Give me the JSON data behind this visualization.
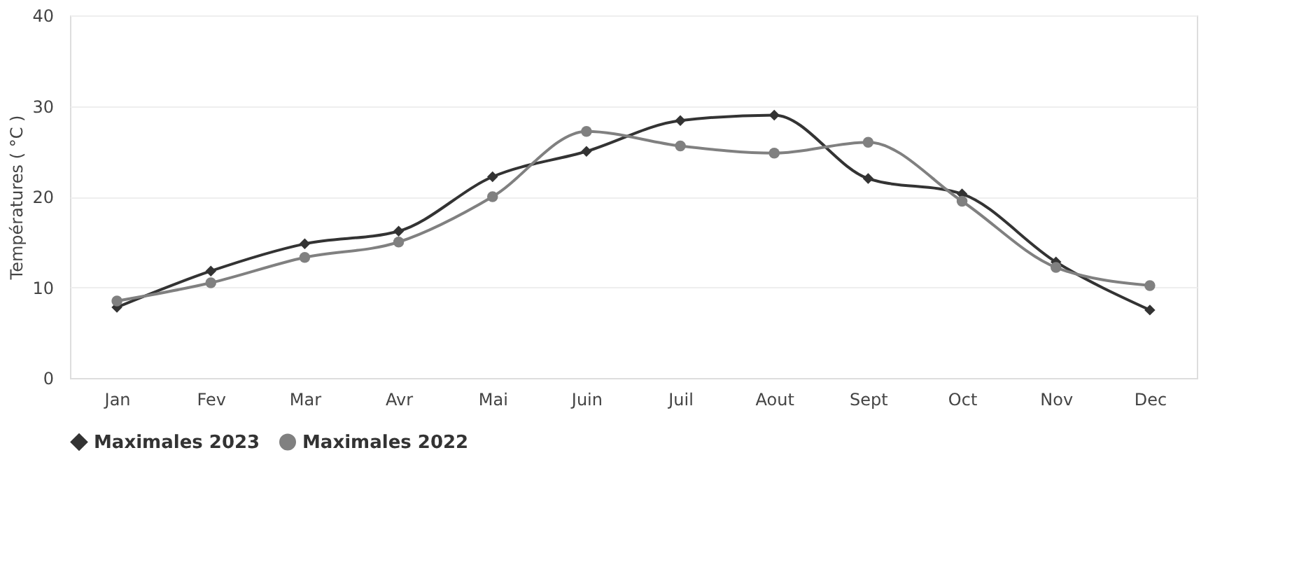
{
  "chart_data": {
    "type": "line",
    "ylabel": "Températures ( °C )",
    "categories": [
      "Jan",
      "Fev",
      "Mar",
      "Avr",
      "Mai",
      "Juin",
      "Juil",
      "Aout",
      "Sept",
      "Oct",
      "Nov",
      "Dec"
    ],
    "series": [
      {
        "name": "Maximales 2023",
        "color": "#333333",
        "marker": "diamond",
        "values": [
          7.8,
          11.8,
          14.8,
          16.2,
          22.2,
          25,
          28.4,
          29,
          22,
          20.3,
          12.8,
          7.5
        ]
      },
      {
        "name": "Maximales 2022",
        "color": "#808080",
        "marker": "circle",
        "values": [
          8.5,
          10.5,
          13.3,
          15,
          20,
          27.2,
          25.6,
          24.8,
          26,
          19.5,
          12.2,
          10.2
        ]
      }
    ],
    "ylim": [
      0,
      40
    ],
    "yticks": [
      0,
      10,
      20,
      30,
      40
    ],
    "grid": "y",
    "legend": "bottom"
  }
}
